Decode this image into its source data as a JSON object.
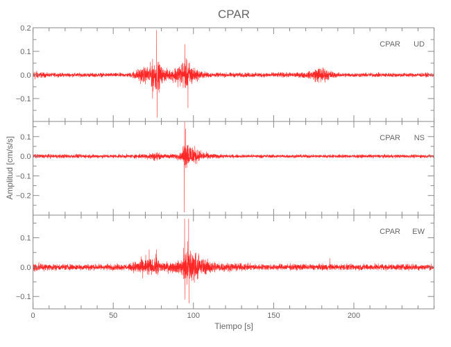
{
  "chart_data": {
    "type": "line",
    "title": "CPAR",
    "xlabel": "Tiempo [s]",
    "ylabel": "Amplitud [cm/s/s]",
    "xlim": [
      0,
      250
    ],
    "xticks": [
      0,
      50,
      100,
      150,
      200
    ],
    "xtick_labels": [
      "0",
      "50",
      "100",
      "150",
      "200"
    ],
    "x_minor_step": 10,
    "grid": false,
    "line_color": "#ff0000",
    "axis_color": "#888888",
    "panels": [
      {
        "station": "CPAR",
        "component": "UD",
        "ylim": [
          -0.197,
          0.2
        ],
        "yticks": [
          0.2,
          0.1,
          0.0,
          -0.1
        ],
        "ytick_labels": [
          "0.2",
          "0.1",
          "0.0",
          "−0.1"
        ],
        "envelope": [
          [
            0,
            0.03,
            -0.035
          ],
          [
            4,
            0.018,
            -0.02
          ],
          [
            10,
            0.012,
            -0.012
          ],
          [
            60,
            0.012,
            -0.012
          ],
          [
            64,
            0.03,
            -0.03
          ],
          [
            68,
            0.045,
            -0.05
          ],
          [
            72,
            0.05,
            -0.05
          ],
          [
            75,
            0.09,
            -0.09
          ],
          [
            78,
            0.08,
            -0.1
          ],
          [
            81,
            0.04,
            -0.04
          ],
          [
            86,
            0.03,
            -0.03
          ],
          [
            90,
            0.06,
            -0.06
          ],
          [
            94,
            0.09,
            -0.08
          ],
          [
            97,
            0.08,
            -0.09
          ],
          [
            101,
            0.04,
            -0.04
          ],
          [
            106,
            0.02,
            -0.02
          ],
          [
            112,
            0.013,
            -0.013
          ],
          [
            165,
            0.015,
            -0.015
          ],
          [
            172,
            0.02,
            -0.02
          ],
          [
            177,
            0.045,
            -0.045
          ],
          [
            180,
            0.05,
            -0.05
          ],
          [
            184,
            0.03,
            -0.03
          ],
          [
            190,
            0.013,
            -0.013
          ],
          [
            250,
            0.012,
            -0.012
          ]
        ],
        "peaks": [
          [
            77,
            0.19
          ],
          [
            77.3,
            -0.18
          ],
          [
            94.7,
            0.13
          ],
          [
            96.6,
            -0.14
          ],
          [
            74.5,
            -0.1
          ]
        ]
      },
      {
        "station": "CPAR",
        "component": "NS",
        "ylim": [
          -0.3,
          0.177
        ],
        "yticks": [
          0.1,
          0.0,
          -0.1,
          -0.2
        ],
        "ytick_labels": [
          "0.1",
          "0.0",
          "−0.1",
          "−0.2"
        ],
        "envelope": [
          [
            0,
            0.015,
            -0.015
          ],
          [
            60,
            0.013,
            -0.013
          ],
          [
            70,
            0.018,
            -0.018
          ],
          [
            77,
            0.03,
            -0.035
          ],
          [
            80,
            0.015,
            -0.015
          ],
          [
            88,
            0.018,
            -0.02
          ],
          [
            93,
            0.03,
            -0.03
          ],
          [
            94.5,
            0.15,
            -0.1
          ],
          [
            97,
            0.11,
            -0.07
          ],
          [
            100,
            0.08,
            -0.06
          ],
          [
            104,
            0.04,
            -0.03
          ],
          [
            110,
            0.02,
            -0.02
          ],
          [
            120,
            0.012,
            -0.012
          ],
          [
            250,
            0.012,
            -0.012
          ]
        ],
        "peaks": [
          [
            94.5,
            0.175
          ],
          [
            94.3,
            -0.285
          ],
          [
            95.2,
            0.14
          ]
        ]
      },
      {
        "station": "CPAR",
        "component": "EW",
        "ylim": [
          -0.142,
          0.177
        ],
        "yticks": [
          0.1,
          0.0,
          -0.1
        ],
        "ytick_labels": [
          "0.1",
          "0.0",
          "−0.1"
        ],
        "envelope": [
          [
            0,
            0.025,
            -0.03
          ],
          [
            5,
            0.02,
            -0.02
          ],
          [
            12,
            0.015,
            -0.015
          ],
          [
            60,
            0.015,
            -0.015
          ],
          [
            64,
            0.03,
            -0.03
          ],
          [
            68,
            0.04,
            -0.04
          ],
          [
            72,
            0.055,
            -0.05
          ],
          [
            75,
            0.03,
            -0.03
          ],
          [
            77,
            0.055,
            -0.05
          ],
          [
            80,
            0.025,
            -0.025
          ],
          [
            88,
            0.025,
            -0.025
          ],
          [
            93,
            0.04,
            -0.04
          ],
          [
            95,
            0.12,
            -0.11
          ],
          [
            98,
            0.1,
            -0.09
          ],
          [
            101,
            0.08,
            -0.06
          ],
          [
            105,
            0.05,
            -0.04
          ],
          [
            110,
            0.03,
            -0.03
          ],
          [
            120,
            0.02,
            -0.02
          ],
          [
            140,
            0.015,
            -0.015
          ],
          [
            250,
            0.015,
            -0.015
          ]
        ],
        "peaks": [
          [
            94.5,
            0.165
          ],
          [
            97,
            0.165
          ],
          [
            97.2,
            -0.123
          ],
          [
            94.8,
            -0.11
          ],
          [
            72.4,
            0.06
          ],
          [
            77,
            0.06
          ],
          [
            185,
            0.03
          ]
        ]
      }
    ]
  }
}
